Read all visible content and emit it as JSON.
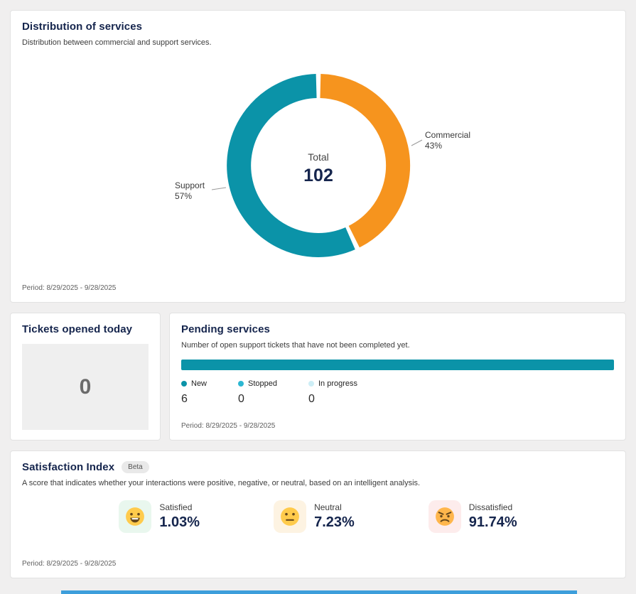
{
  "app": {
    "bg_color": "#f0efef",
    "accent_bar_color": "#3d9edb"
  },
  "distribution_card": {
    "title": "Distribution of services",
    "subtitle": "Distribution between commercial and support services.",
    "period": "Period: 8/29/2025 - 9/28/2025"
  },
  "tickets_card": {
    "title": "Tickets opened today",
    "value": "0"
  },
  "pending_card": {
    "title": "Pending services",
    "subtitle": "Number of open support tickets that have not been completed yet.",
    "period": "Period: 8/29/2025 - 9/28/2025",
    "legend": [
      {
        "label": "New",
        "value": "6",
        "color": "#0b93a8"
      },
      {
        "label": "Stopped",
        "value": "0",
        "color": "#2cb7d2"
      },
      {
        "label": "In progress",
        "value": "0",
        "color": "#cdeef6"
      }
    ]
  },
  "satisfaction_card": {
    "title": "Satisfaction Index",
    "badge": "Beta",
    "subtitle": "A score that indicates whether your interactions were positive, negative, or neutral, based on an intelligent analysis.",
    "period": "Period: 8/29/2025 - 9/28/2025",
    "stats": [
      {
        "label": "Satisfied",
        "value": "1.03%",
        "icon": "grinning-face-icon",
        "bg": "#e9f7ee"
      },
      {
        "label": "Neutral",
        "value": "7.23%",
        "icon": "neutral-face-icon",
        "bg": "#fdf3e2"
      },
      {
        "label": "Dissatisfied",
        "value": "91.74%",
        "icon": "angry-face-icon",
        "bg": "#fdecec"
      }
    ]
  },
  "chart_data": [
    {
      "type": "pie",
      "donut": true,
      "title": "Distribution of services",
      "categories": [
        "Commercial",
        "Support"
      ],
      "values": [
        43,
        57
      ],
      "percent_labels": [
        "43%",
        "57%"
      ],
      "colors": [
        "#f6941e",
        "#0b93a8"
      ],
      "center_label": "Total",
      "center_value": "102",
      "legend_position": "callout-labels"
    },
    {
      "type": "bar",
      "orientation": "horizontal",
      "title": "Pending services",
      "categories": [
        "New",
        "Stopped",
        "In progress"
      ],
      "values": [
        6,
        0,
        0
      ],
      "colors": [
        "#0b93a8",
        "#2cb7d2",
        "#cdeef6"
      ],
      "xlim": [
        0,
        6
      ]
    }
  ]
}
